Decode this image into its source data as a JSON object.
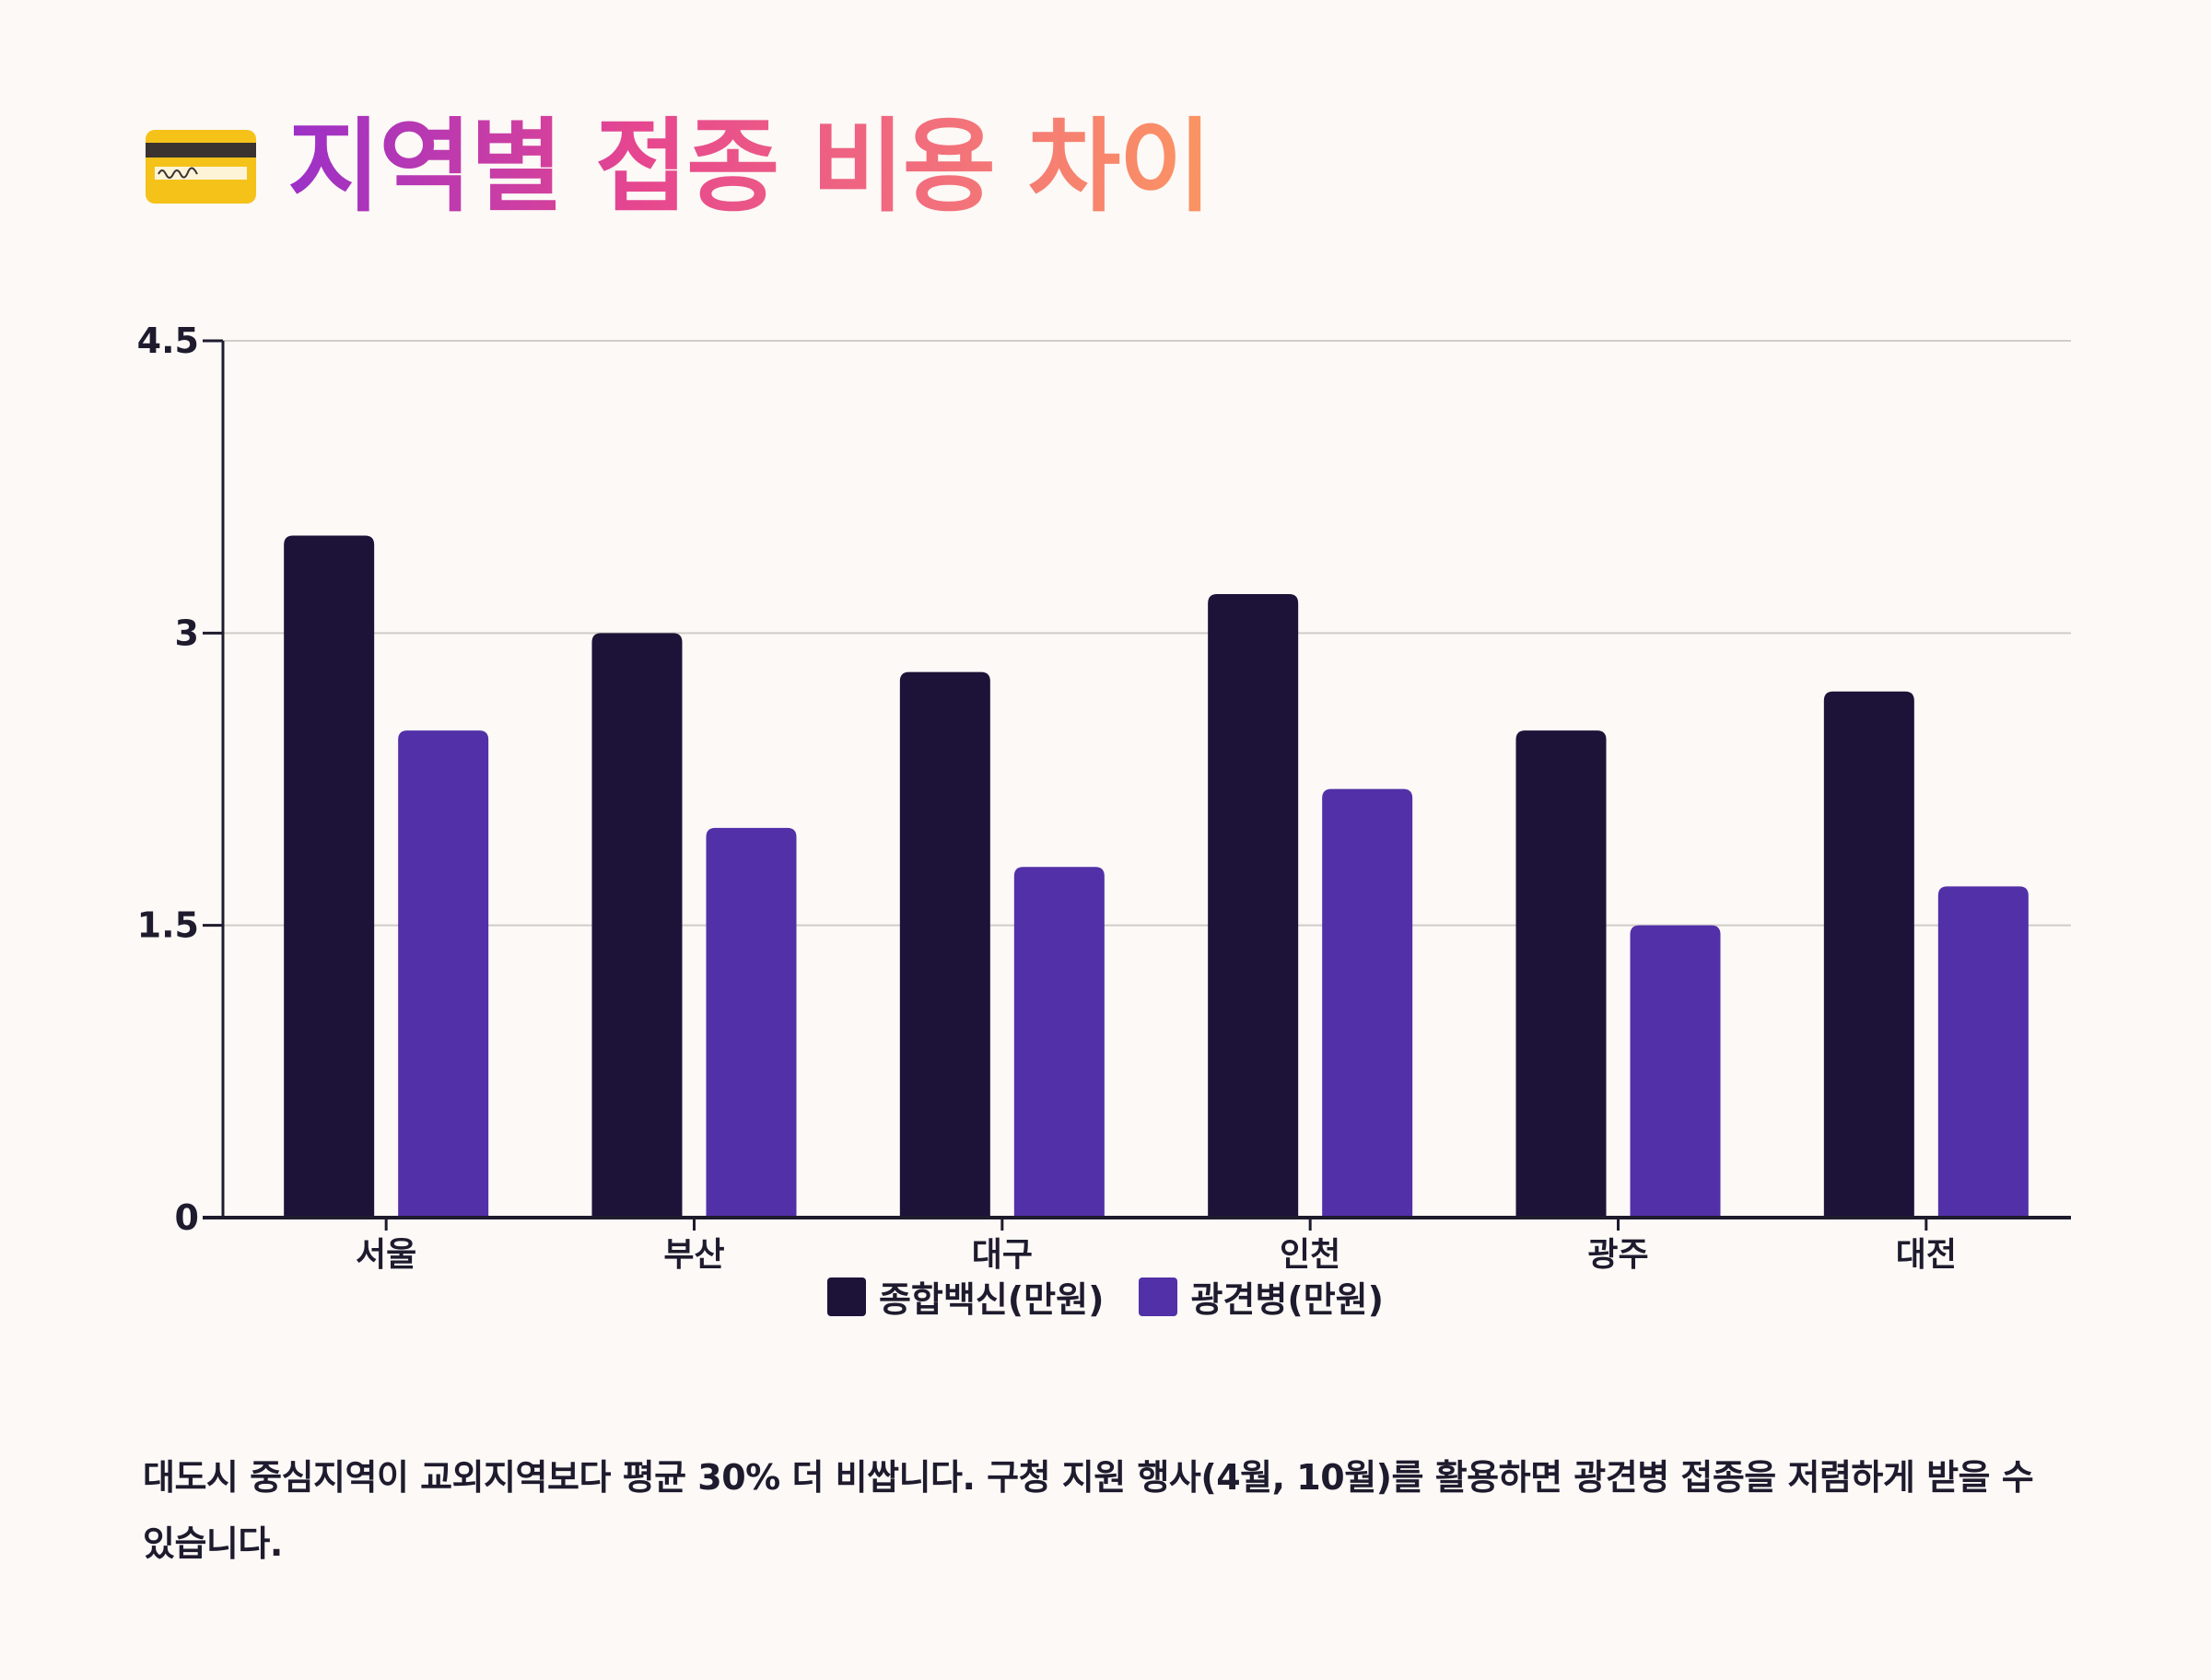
{
  "title": "지역별 접종 비용 차이",
  "icon": "credit-card-icon",
  "colors": {
    "series1": "#1d1238",
    "series2": "#5230a8",
    "grid": "#d0ccc8",
    "axis": "#1e1b2e",
    "background": "#fcf9f6"
  },
  "chart_data": {
    "type": "bar",
    "categories": [
      "서울",
      "부산",
      "대구",
      "인천",
      "광주",
      "대전"
    ],
    "series": [
      {
        "name": "종합백신(만원)",
        "values": [
          3.5,
          3.0,
          2.8,
          3.2,
          2.5,
          2.7
        ]
      },
      {
        "name": "광견병(만원)",
        "values": [
          2.5,
          2.0,
          1.8,
          2.2,
          1.5,
          1.7
        ]
      }
    ],
    "ylim": [
      0,
      4.5
    ],
    "yticks": [
      "0",
      "1.5",
      "3",
      "4.5"
    ],
    "grid": true,
    "legend": "bottom-center"
  },
  "caption": "대도시 중심지역이 교외지역보다 평균 30% 더 비쌉니다. 구청 지원 행사(4월, 10월)를 활용하면 광견병 접종을 저렴하게 받을 수 있습니다."
}
